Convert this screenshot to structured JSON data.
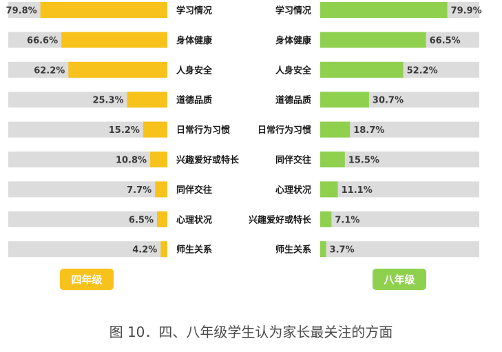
{
  "chart_data": [
    {
      "type": "bar",
      "orientation": "horizontal",
      "series_label": "四年级",
      "categories": [
        "学习情况",
        "身体健康",
        "人身安全",
        "道德品质",
        "日常行为习惯",
        "兴趣爱好或特长",
        "同伴交往",
        "心理状况",
        "师生关系"
      ],
      "values": [
        79.8,
        66.6,
        62.2,
        25.3,
        15.2,
        10.8,
        7.7,
        6.5,
        4.2
      ],
      "value_labels": [
        "79.8%",
        "66.6%",
        "62.2%",
        "25.3%",
        "15.2%",
        "10.8%",
        "7.7%",
        "6.5%",
        "4.2%"
      ],
      "xlim": [
        0,
        100
      ],
      "color": "#f8c21c"
    },
    {
      "type": "bar",
      "orientation": "horizontal",
      "series_label": "八年级",
      "categories": [
        "学习情况",
        "身体健康",
        "人身安全",
        "道德品质",
        "日常行为习惯",
        "同伴交往",
        "心理状况",
        "兴趣爱好或特长",
        "师生关系"
      ],
      "values": [
        79.9,
        66.5,
        52.2,
        30.7,
        18.7,
        15.5,
        11.1,
        7.1,
        3.7
      ],
      "value_labels": [
        "79.9%",
        "66.5%",
        "52.2%",
        "30.7%",
        "18.7%",
        "15.5%",
        "11.1%",
        "7.1%",
        "3.7%"
      ],
      "xlim": [
        0,
        100
      ],
      "color": "#8fd14f"
    }
  ],
  "caption": "图 10．四、八年级学生认为家长最关注的方面"
}
